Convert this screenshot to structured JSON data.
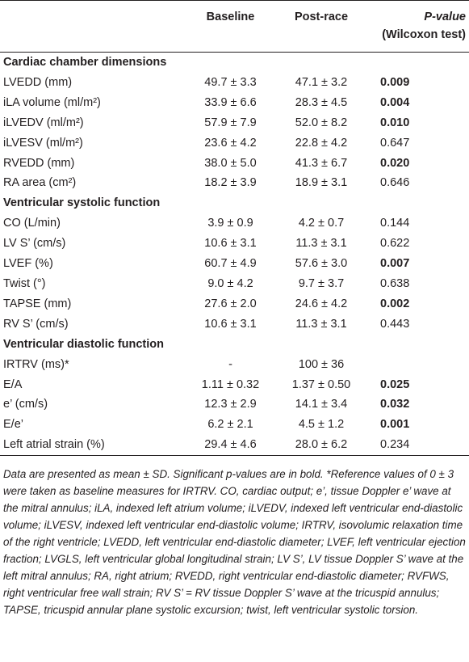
{
  "table": {
    "header": {
      "baseline": "Baseline",
      "post_race": "Post-race",
      "p_value": "P-value",
      "p_test": "(Wilcoxon test)"
    },
    "sections": [
      {
        "title": "Cardiac chamber dimensions",
        "rows": [
          {
            "label": "LVEDD (mm)",
            "baseline": "49.7 ± 3.3",
            "post_race": "47.1 ± 3.2",
            "p": "0.009",
            "significant": true
          },
          {
            "label": "iLA volume (ml/m²)",
            "baseline": "33.9 ± 6.6",
            "post_race": "28.3 ± 4.5",
            "p": "0.004",
            "significant": true
          },
          {
            "label": "iLVEDV (ml/m²)",
            "baseline": "57.9 ± 7.9",
            "post_race": "52.0 ± 8.2",
            "p": "0.010",
            "significant": true
          },
          {
            "label": "iLVESV (ml/m²)",
            "baseline": "23.6 ± 4.2",
            "post_race": "22.8 ± 4.2",
            "p": "0.647",
            "significant": false
          },
          {
            "label": "RVEDD (mm)",
            "baseline": "38.0 ± 5.0",
            "post_race": "41.3 ± 6.7",
            "p": "0.020",
            "significant": true
          },
          {
            "label": "RA area (cm²)",
            "baseline": "18.2 ± 3.9",
            "post_race": "18.9 ± 3.1",
            "p": "0.646",
            "significant": false
          }
        ]
      },
      {
        "title": "Ventricular systolic function",
        "rows": [
          {
            "label": "CO (L/min)",
            "baseline": "3.9 ± 0.9",
            "post_race": "4.2 ± 0.7",
            "p": "0.144",
            "significant": false
          },
          {
            "label": "LV S’ (cm/s)",
            "baseline": "10.6 ± 3.1",
            "post_race": "11.3 ± 3.1",
            "p": "0.622",
            "significant": false
          },
          {
            "label": "LVEF (%)",
            "baseline": "60.7 ± 4.9",
            "post_race": "57.6 ± 3.0",
            "p": "0.007",
            "significant": true
          },
          {
            "label": "Twist (°)",
            "baseline": "9.0 ± 4.2",
            "post_race": "9.7 ± 3.7",
            "p": "0.638",
            "significant": false
          },
          {
            "label": "TAPSE (mm)",
            "baseline": "27.6 ± 2.0",
            "post_race": "24.6 ± 4.2",
            "p": "0.002",
            "significant": true
          },
          {
            "label": "RV S’ (cm/s)",
            "baseline": "10.6 ± 3.1",
            "post_race": "11.3 ± 3.1",
            "p": "0.443",
            "significant": false
          }
        ]
      },
      {
        "title": "Ventricular diastolic function",
        "rows": [
          {
            "label": "IRTRV (ms)*",
            "baseline": "-",
            "post_race": "100 ± 36",
            "significant": false
          },
          {
            "label": "E/A",
            "baseline": "1.11 ± 0.32",
            "post_race": "1.37 ± 0.50",
            "p": "0.025",
            "significant": true
          },
          {
            "label": "e’ (cm/s)",
            "baseline": "12.3 ± 2.9",
            "post_race": "14.1 ± 3.4",
            "p": "0.032",
            "significant": true
          },
          {
            "label": "E/e’",
            "baseline": "6.2 ± 2.1",
            "post_race": "4.5 ± 1.2",
            "p": "0.001",
            "significant": true
          },
          {
            "label": "Left atrial strain (%)",
            "baseline": "29.4 ± 4.6",
            "post_race": "28.0 ± 6.2",
            "p": "0.234",
            "significant": false
          }
        ]
      }
    ],
    "footnote": "Data are presented as mean ± SD. Significant p-values are in bold. *Reference values of 0 ± 3 were taken as baseline measures for IRTRV. CO, cardiac output; e’, tissue Doppler e’ wave at the mitral annulus; iLA, indexed left atrium volume; iLVEDV, indexed left ventricular end-diastolic volume; iLVESV, indexed left ventricular end-diastolic volume; IRTRV, isovolumic relaxation time of the right ventricle; LVEDD, left ventricular end-diastolic diameter; LVEF, left ventricular ejection fraction; LVGLS, left ventricular global longitudinal strain; LV S’, LV tissue Doppler S’ wave at the left mitral annulus; RA, right atrium; RVEDD, right ventricular end-diastolic diameter; RVFWS, right ventricular free wall strain; RV S’ = RV tissue Doppler S’ wave at the tricuspid annulus; TAPSE, tricuspid annular plane systolic excursion; twist, left ventricular systolic torsion."
  }
}
